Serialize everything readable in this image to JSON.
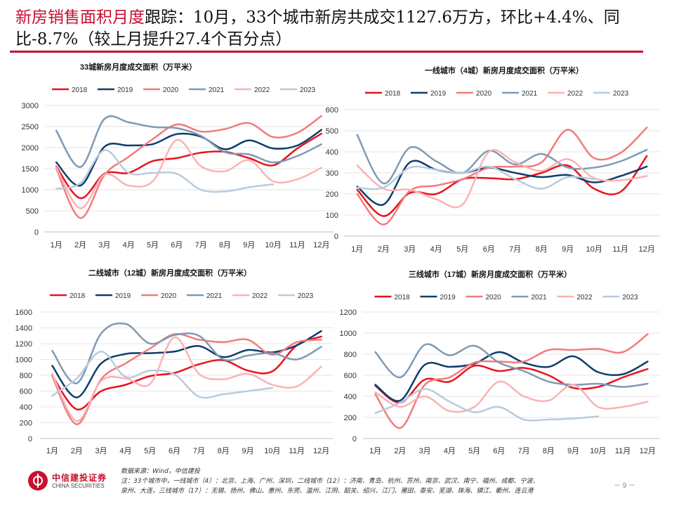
{
  "page": {
    "title_highlight": "新房销售面积月度",
    "title_rest": "跟踪：10月，33个城市新房共成交1127.6万方，环比+4.4%、同比-8.7%（较上月提升27.4个百分点）",
    "source_line1": "数据来源：Wind，中信建投",
    "source_line2": "注：33个城市中，一线城市（4）：北京、上海、广州、深圳，二线城市（12）：济南、青岛、杭州、苏州、南京、武汉、南宁、福州、成都、宁波、",
    "source_line3": "泉州、大连，三线城市（17）：无锡、扬州、佛山、惠州、东莞、温州、江阴、韶关、绍兴、江门、莆田、泰安、芜湖、珠海、镇江、衢州、连云港",
    "page_number": "－ 9 －",
    "logo_cn": "中信建投证券",
    "logo_en": "CHINA SECURITIES"
  },
  "colors": {
    "2018": "#e8131f",
    "2019": "#0e3d6c",
    "2020": "#f27b7b",
    "2021": "#7f9ab4",
    "2022": "#f9b3b5",
    "2023": "#b9cbdc"
  },
  "chart_data": [
    {
      "type": "line",
      "title": "33城新房月度成交面积（万平米）",
      "categories": [
        "1月",
        "2月",
        "3月",
        "4月",
        "5月",
        "6月",
        "7月",
        "8月",
        "9月",
        "10月",
        "11月",
        "12月"
      ],
      "ylim": [
        0,
        3000
      ],
      "yticks": [
        0,
        500,
        1000,
        1500,
        2000,
        2500,
        3000
      ],
      "legend": "top",
      "series": [
        {
          "name": "2018",
          "values": [
            1550,
            800,
            1380,
            1400,
            1680,
            1750,
            1880,
            1900,
            1750,
            1580,
            1980,
            2330
          ]
        },
        {
          "name": "2019",
          "values": [
            1650,
            1100,
            2020,
            2050,
            2080,
            2320,
            2260,
            1960,
            2170,
            1980,
            2050,
            2420
          ]
        },
        {
          "name": "2020",
          "values": [
            1500,
            330,
            1350,
            1780,
            2200,
            2550,
            2380,
            2440,
            2580,
            2250,
            2350,
            2750
          ]
        },
        {
          "name": "2021",
          "values": [
            2400,
            1540,
            2680,
            2600,
            2490,
            2460,
            2280,
            1890,
            1840,
            1650,
            1800,
            2080
          ]
        },
        {
          "name": "2022",
          "values": [
            1530,
            560,
            1360,
            1100,
            1200,
            2180,
            1560,
            1440,
            1700,
            1200,
            1250,
            1520
          ]
        },
        {
          "name": "2023",
          "values": [
            1020,
            1160,
            1940,
            1400,
            1400,
            1380,
            1000,
            960,
            1060,
            1130,
            null,
            null
          ]
        }
      ]
    },
    {
      "type": "line",
      "title": "一线城市（4城）新房月度成交面积（万平米）",
      "categories": [
        "1月",
        "2月",
        "3月",
        "4月",
        "5月",
        "6月",
        "7月",
        "8月",
        "9月",
        "10月",
        "11月",
        "12月"
      ],
      "ylim": [
        0,
        600
      ],
      "yticks": [
        0,
        100,
        200,
        300,
        400,
        500,
        600
      ],
      "legend": "top",
      "series": [
        {
          "name": "2018",
          "values": [
            220,
            95,
            205,
            200,
            270,
            275,
            270,
            300,
            335,
            225,
            210,
            380
          ]
        },
        {
          "name": "2019",
          "values": [
            235,
            150,
            350,
            315,
            300,
            325,
            300,
            280,
            290,
            255,
            285,
            330
          ]
        },
        {
          "name": "2020",
          "values": [
            200,
            55,
            215,
            240,
            270,
            325,
            330,
            350,
            505,
            370,
            395,
            515
          ]
        },
        {
          "name": "2021",
          "values": [
            480,
            250,
            420,
            355,
            300,
            405,
            340,
            390,
            325,
            325,
            355,
            410
          ]
        },
        {
          "name": "2022",
          "values": [
            335,
            225,
            220,
            175,
            150,
            400,
            350,
            310,
            365,
            275,
            265,
            285
          ]
        },
        {
          "name": "2023",
          "values": [
            230,
            230,
            325,
            315,
            300,
            330,
            270,
            225,
            280,
            270,
            null,
            null
          ]
        }
      ]
    },
    {
      "type": "line",
      "title": "二线城市（12城）新房月度成交面积（万平米）",
      "categories": [
        "1月",
        "2月",
        "3月",
        "4月",
        "5月",
        "6月",
        "7月",
        "8月",
        "9月",
        "10月",
        "11月",
        "12月"
      ],
      "ylim": [
        0,
        1600
      ],
      "yticks": [
        0,
        200,
        400,
        600,
        800,
        1000,
        1200,
        1400,
        1600
      ],
      "legend": "top",
      "series": [
        {
          "name": "2018",
          "values": [
            800,
            370,
            600,
            680,
            790,
            830,
            940,
            990,
            860,
            850,
            1180,
            1290
          ]
        },
        {
          "name": "2019",
          "values": [
            920,
            520,
            950,
            1070,
            1080,
            1100,
            1170,
            1030,
            1120,
            1090,
            1180,
            1360
          ]
        },
        {
          "name": "2020",
          "values": [
            790,
            180,
            750,
            950,
            1140,
            1320,
            1250,
            1220,
            1250,
            1060,
            1220,
            1250
          ]
        },
        {
          "name": "2021",
          "values": [
            1110,
            700,
            1330,
            1450,
            1200,
            1310,
            1300,
            1000,
            1050,
            1080,
            1000,
            1160
          ]
        },
        {
          "name": "2022",
          "values": [
            820,
            220,
            730,
            760,
            690,
            1280,
            820,
            750,
            820,
            680,
            660,
            910
          ]
        },
        {
          "name": "2023",
          "values": [
            540,
            760,
            1100,
            780,
            860,
            810,
            530,
            560,
            600,
            640,
            null,
            null
          ]
        }
      ]
    },
    {
      "type": "line",
      "title": "三线城市（17城）新房月度成交面积（万平米）",
      "categories": [
        "1月",
        "2月",
        "3月",
        "4月",
        "5月",
        "6月",
        "7月",
        "8月",
        "9月",
        "10月",
        "11月",
        "12月"
      ],
      "ylim": [
        0,
        1200
      ],
      "yticks": [
        0,
        200,
        400,
        600,
        800,
        1000,
        1200
      ],
      "legend": "top",
      "series": [
        {
          "name": "2018",
          "values": [
            500,
            340,
            560,
            540,
            690,
            640,
            670,
            600,
            480,
            490,
            580,
            660
          ]
        },
        {
          "name": "2019",
          "values": [
            510,
            360,
            700,
            680,
            710,
            820,
            720,
            680,
            780,
            630,
            610,
            730
          ]
        },
        {
          "name": "2020",
          "values": [
            420,
            100,
            510,
            580,
            720,
            730,
            730,
            840,
            840,
            850,
            820,
            990
          ]
        },
        {
          "name": "2021",
          "values": [
            820,
            580,
            890,
            790,
            880,
            720,
            640,
            540,
            510,
            520,
            490,
            520
          ]
        },
        {
          "name": "2022",
          "values": [
            440,
            300,
            400,
            260,
            300,
            540,
            400,
            360,
            510,
            300,
            300,
            350
          ]
        },
        {
          "name": "2023",
          "values": [
            240,
            340,
            470,
            350,
            250,
            300,
            180,
            180,
            190,
            210,
            null,
            null
          ]
        }
      ]
    }
  ]
}
